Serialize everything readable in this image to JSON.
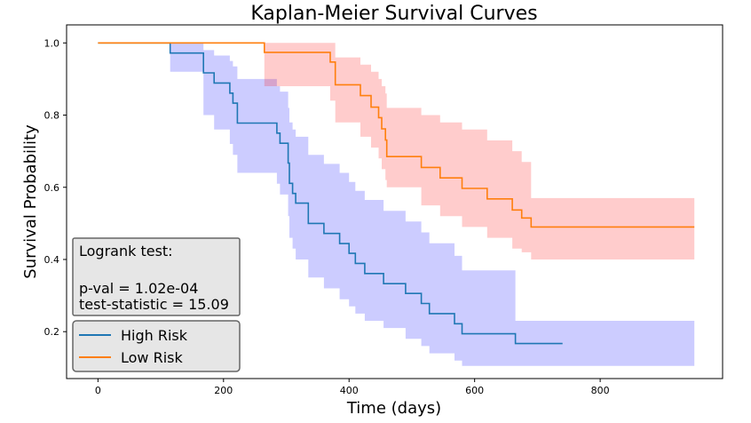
{
  "chart_data": {
    "type": "line",
    "title": "Kaplan-Meier Survival Curves",
    "xlabel": "Time (days)",
    "ylabel": "Survival Probability",
    "xlim": [
      -50,
      995
    ],
    "ylim": [
      0.07,
      1.05
    ],
    "xticks": [
      0,
      200,
      400,
      600,
      800
    ],
    "yticks": [
      0.2,
      0.4,
      0.6,
      0.8,
      1.0
    ],
    "ytick_labels": [
      "0.2",
      "0.4",
      "0.6",
      "0.8",
      "1.0"
    ],
    "grid": false,
    "legend_position": "bottom-left",
    "annotation": {
      "heading": "Logrank test:",
      "pval": "p-val = 1.02e-04",
      "stat": "test-statistic = 15.09"
    },
    "series": [
      {
        "name": "High Risk",
        "color": "#1f77b4",
        "band_color": "#0000ff",
        "steps": [
          [
            0,
            1.0
          ],
          [
            115,
            0.972
          ],
          [
            150,
            0.972
          ],
          [
            168,
            0.917
          ],
          [
            185,
            0.889
          ],
          [
            210,
            0.861
          ],
          [
            215,
            0.833
          ],
          [
            222,
            0.778
          ],
          [
            270,
            0.778
          ],
          [
            285,
            0.75
          ],
          [
            290,
            0.722
          ],
          [
            303,
            0.667
          ],
          [
            305,
            0.611
          ],
          [
            310,
            0.583
          ],
          [
            315,
            0.556
          ],
          [
            335,
            0.5
          ],
          [
            360,
            0.472
          ],
          [
            385,
            0.444
          ],
          [
            400,
            0.417
          ],
          [
            410,
            0.389
          ],
          [
            425,
            0.361
          ],
          [
            455,
            0.333
          ],
          [
            490,
            0.306
          ],
          [
            515,
            0.278
          ],
          [
            528,
            0.25
          ],
          [
            568,
            0.222
          ],
          [
            580,
            0.194
          ],
          [
            665,
            0.167
          ],
          [
            740,
            0.167
          ]
        ],
        "ci_upper": [
          [
            0,
            1.0
          ],
          [
            115,
            1.0
          ],
          [
            150,
            1.0
          ],
          [
            168,
            0.98
          ],
          [
            185,
            0.965
          ],
          [
            210,
            0.95
          ],
          [
            215,
            0.935
          ],
          [
            222,
            0.9
          ],
          [
            270,
            0.9
          ],
          [
            285,
            0.88
          ],
          [
            290,
            0.865
          ],
          [
            303,
            0.82
          ],
          [
            305,
            0.78
          ],
          [
            310,
            0.76
          ],
          [
            315,
            0.74
          ],
          [
            335,
            0.69
          ],
          [
            360,
            0.665
          ],
          [
            385,
            0.64
          ],
          [
            400,
            0.615
          ],
          [
            410,
            0.59
          ],
          [
            425,
            0.565
          ],
          [
            455,
            0.535
          ],
          [
            490,
            0.505
          ],
          [
            515,
            0.475
          ],
          [
            528,
            0.445
          ],
          [
            568,
            0.41
          ],
          [
            580,
            0.37
          ],
          [
            665,
            0.23
          ],
          [
            950,
            0.23
          ]
        ],
        "ci_lower": [
          [
            0,
            1.0
          ],
          [
            115,
            0.92
          ],
          [
            150,
            0.92
          ],
          [
            168,
            0.8
          ],
          [
            185,
            0.76
          ],
          [
            210,
            0.72
          ],
          [
            215,
            0.69
          ],
          [
            222,
            0.64
          ],
          [
            270,
            0.64
          ],
          [
            285,
            0.61
          ],
          [
            290,
            0.58
          ],
          [
            303,
            0.52
          ],
          [
            305,
            0.46
          ],
          [
            310,
            0.43
          ],
          [
            315,
            0.4
          ],
          [
            335,
            0.35
          ],
          [
            360,
            0.32
          ],
          [
            385,
            0.29
          ],
          [
            400,
            0.27
          ],
          [
            410,
            0.25
          ],
          [
            425,
            0.23
          ],
          [
            455,
            0.21
          ],
          [
            490,
            0.18
          ],
          [
            515,
            0.16
          ],
          [
            528,
            0.14
          ],
          [
            568,
            0.12
          ],
          [
            580,
            0.105
          ],
          [
            950,
            0.105
          ]
        ]
      },
      {
        "name": "Low Risk",
        "color": "#ff7f0e",
        "band_color": "#ff0000",
        "steps": [
          [
            0,
            1.0
          ],
          [
            265,
            0.974
          ],
          [
            370,
            0.947
          ],
          [
            378,
            0.884
          ],
          [
            418,
            0.854
          ],
          [
            435,
            0.822
          ],
          [
            447,
            0.793
          ],
          [
            452,
            0.762
          ],
          [
            458,
            0.731
          ],
          [
            460,
            0.685
          ],
          [
            515,
            0.655
          ],
          [
            545,
            0.626
          ],
          [
            580,
            0.597
          ],
          [
            620,
            0.568
          ],
          [
            660,
            0.537
          ],
          [
            675,
            0.515
          ],
          [
            690,
            0.49
          ],
          [
            950,
            0.49
          ]
        ],
        "ci_upper": [
          [
            0,
            1.0
          ],
          [
            265,
            1.0
          ],
          [
            370,
            1.0
          ],
          [
            378,
            0.96
          ],
          [
            418,
            0.94
          ],
          [
            435,
            0.92
          ],
          [
            447,
            0.9
          ],
          [
            452,
            0.88
          ],
          [
            458,
            0.86
          ],
          [
            460,
            0.82
          ],
          [
            515,
            0.8
          ],
          [
            545,
            0.78
          ],
          [
            580,
            0.76
          ],
          [
            620,
            0.73
          ],
          [
            660,
            0.7
          ],
          [
            675,
            0.67
          ],
          [
            690,
            0.57
          ],
          [
            950,
            0.57
          ]
        ],
        "ci_lower": [
          [
            0,
            1.0
          ],
          [
            265,
            0.88
          ],
          [
            370,
            0.84
          ],
          [
            378,
            0.78
          ],
          [
            418,
            0.74
          ],
          [
            435,
            0.71
          ],
          [
            447,
            0.68
          ],
          [
            452,
            0.65
          ],
          [
            458,
            0.62
          ],
          [
            460,
            0.6
          ],
          [
            515,
            0.55
          ],
          [
            545,
            0.52
          ],
          [
            580,
            0.49
          ],
          [
            620,
            0.46
          ],
          [
            660,
            0.43
          ],
          [
            675,
            0.42
          ],
          [
            690,
            0.4
          ],
          [
            950,
            0.4
          ]
        ]
      }
    ]
  }
}
